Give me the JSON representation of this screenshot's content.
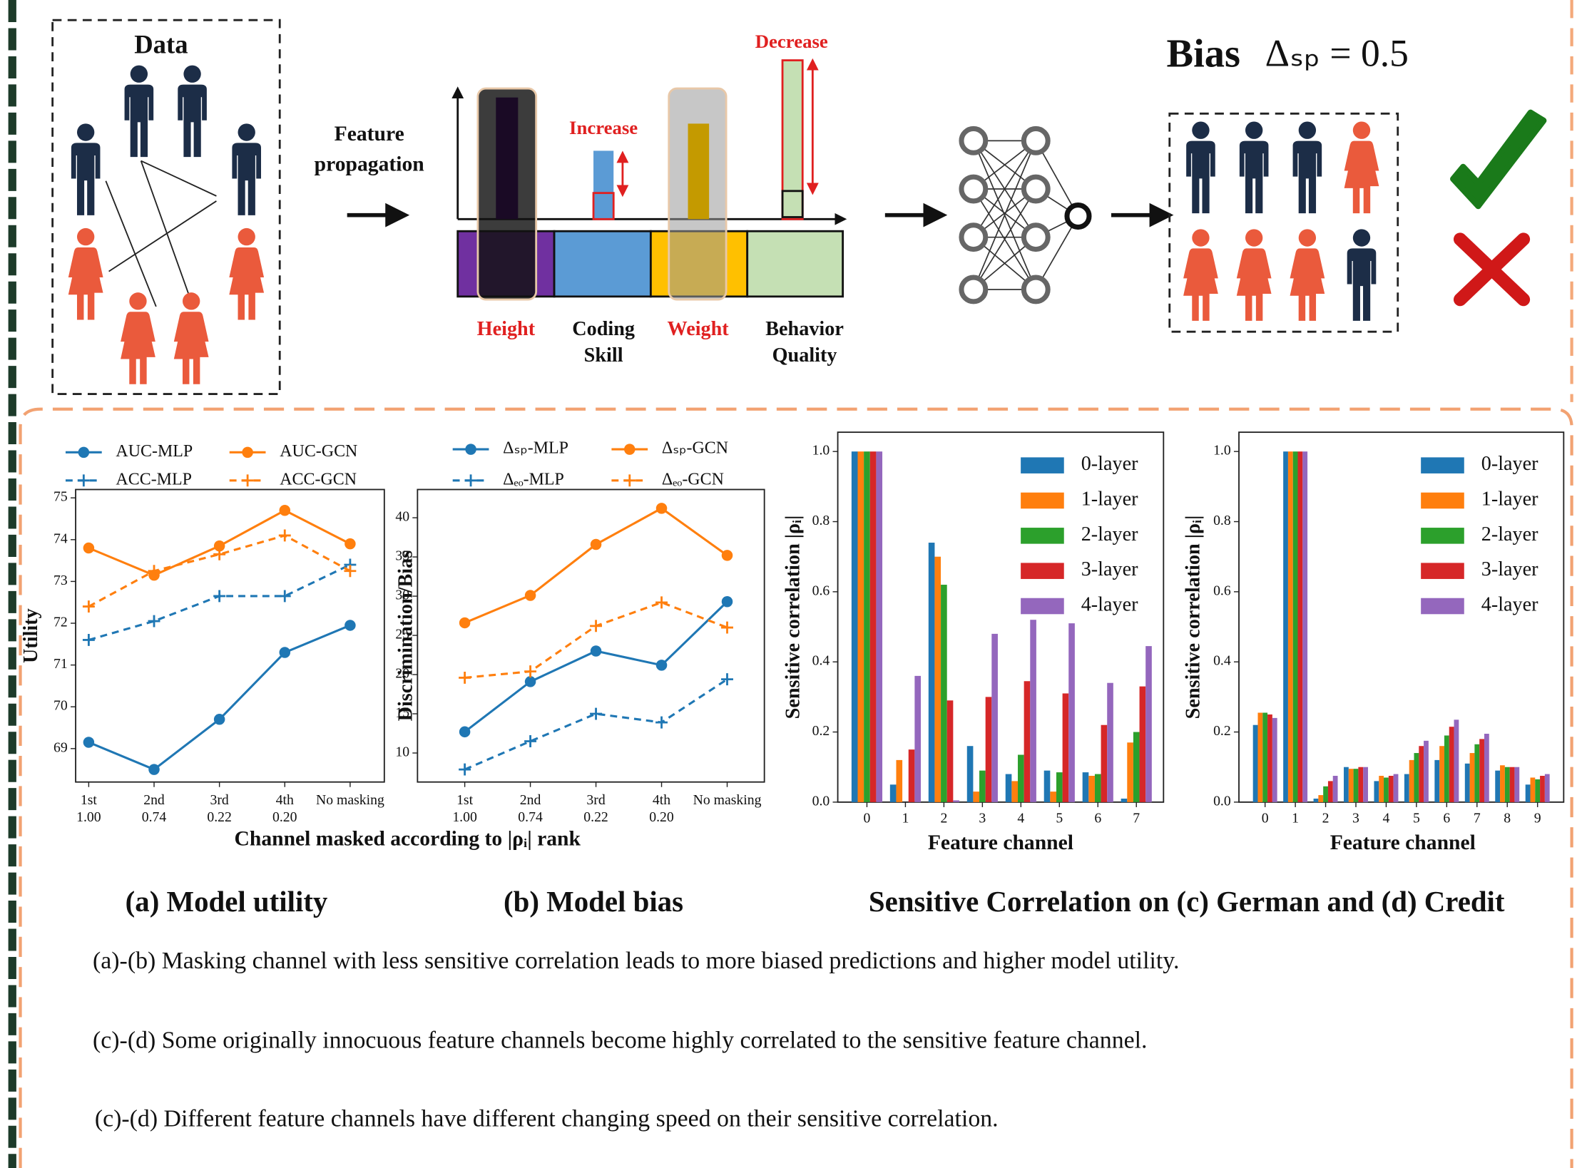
{
  "diagram": {
    "data_label": "Data",
    "propagation_label": [
      "Feature",
      "propagation"
    ],
    "increase": "Increase",
    "decrease": "Decrease",
    "features": [
      {
        "name": [
          "Height"
        ],
        "color": "#e02020"
      },
      {
        "name": [
          "Coding",
          "Skill"
        ],
        "color": "#111111"
      },
      {
        "name": [
          "Weight"
        ],
        "color": "#e02020"
      },
      {
        "name": [
          "Behavior",
          "Quality"
        ],
        "color": "#111111"
      }
    ],
    "bias_label": "Bias",
    "bias_formula": "Δₛₚ = 0.5"
  },
  "chart_data": [
    {
      "type": "line",
      "title": "(a) Model utility",
      "categories": [
        "1st",
        "2nd",
        "3rd",
        "4th",
        "No masking"
      ],
      "category_sublabels": [
        "1.00",
        "0.74",
        "0.22",
        "0.20",
        null
      ],
      "xlabel": "Channel masked according to |ρᵢ| rank",
      "ylabel": "Utility",
      "ylim": [
        68.2,
        75.2
      ],
      "yticks": [
        69,
        70,
        71,
        72,
        73,
        74,
        75
      ],
      "series": [
        {
          "name": "AUC-MLP",
          "color": "#1f77b4",
          "marker": "circle",
          "dashed": false,
          "values": [
            69.15,
            68.5,
            69.7,
            71.3,
            71.95
          ]
        },
        {
          "name": "ACC-MLP",
          "color": "#1f77b4",
          "marker": "plus",
          "dashed": true,
          "values": [
            71.6,
            72.05,
            72.65,
            72.65,
            73.4
          ]
        },
        {
          "name": "AUC-GCN",
          "color": "#ff7f0e",
          "marker": "circle",
          "dashed": false,
          "values": [
            73.8,
            73.15,
            73.85,
            74.7,
            73.9
          ]
        },
        {
          "name": "ACC-GCN",
          "color": "#ff7f0e",
          "marker": "plus",
          "dashed": true,
          "values": [
            72.4,
            73.25,
            73.65,
            74.1,
            73.25
          ]
        }
      ]
    },
    {
      "type": "line",
      "title": "(b) Model bias",
      "categories": [
        "1st",
        "2nd",
        "3rd",
        "4th",
        "No masking"
      ],
      "category_sublabels": [
        "1.00",
        "0.74",
        "0.22",
        "0.20",
        null
      ],
      "ylabel": "Discrimination/Bias",
      "ylim": [
        6.3,
        43.6
      ],
      "yticks": [
        10,
        15,
        20,
        25,
        30,
        35,
        40
      ],
      "series": [
        {
          "name": "Δₛₚ-MLP",
          "color": "#1f77b4",
          "marker": "circle",
          "dashed": false,
          "values": [
            12.7,
            19.1,
            23.0,
            21.2,
            29.3
          ]
        },
        {
          "name": "Δₑₒ-MLP",
          "color": "#1f77b4",
          "marker": "plus",
          "dashed": true,
          "values": [
            7.9,
            11.5,
            15.0,
            13.9,
            19.4
          ]
        },
        {
          "name": "Δₛₚ-GCN",
          "color": "#ff7f0e",
          "marker": "circle",
          "dashed": false,
          "values": [
            26.6,
            30.1,
            36.6,
            41.2,
            35.2
          ]
        },
        {
          "name": "Δₑₒ-GCN",
          "color": "#ff7f0e",
          "marker": "plus",
          "dashed": true,
          "values": [
            19.6,
            20.4,
            26.2,
            29.2,
            26.0
          ]
        }
      ]
    },
    {
      "type": "bar",
      "legend": "upper right",
      "categories": [
        "0",
        "1",
        "2",
        "3",
        "4",
        "5",
        "6",
        "7"
      ],
      "xlabel": "Feature channel",
      "ylabel": "Sensitive correlation |ρᵢ|",
      "ylim": [
        0,
        1.055
      ],
      "yticks": [
        {
          "value": 0,
          "label": "0.0"
        },
        0.2,
        0.4,
        0.6,
        0.8,
        {
          "value": 1,
          "label": "1.0"
        }
      ],
      "series": [
        {
          "name": "0-layer",
          "color": "#1f77b4",
          "values": [
            1.0,
            0.05,
            0.74,
            0.16,
            0.08,
            0.09,
            0.085,
            0.01
          ]
        },
        {
          "name": "1-layer",
          "color": "#ff7f0e",
          "values": [
            1.0,
            0.12,
            0.7,
            0.03,
            0.06,
            0.03,
            0.075,
            0.17
          ]
        },
        {
          "name": "2-layer",
          "color": "#2ca02c",
          "values": [
            1.0,
            0.0,
            0.62,
            0.09,
            0.135,
            0.085,
            0.08,
            0.2
          ]
        },
        {
          "name": "3-layer",
          "color": "#d62728",
          "values": [
            1.0,
            0.15,
            0.29,
            0.3,
            0.345,
            0.31,
            0.22,
            0.33
          ]
        },
        {
          "name": "4-layer",
          "color": "#9467bd",
          "values": [
            1.0,
            0.36,
            0.005,
            0.48,
            0.52,
            0.51,
            0.34,
            0.445
          ]
        }
      ]
    },
    {
      "type": "bar",
      "legend": "upper right",
      "categories": [
        "0",
        "1",
        "2",
        "3",
        "4",
        "5",
        "6",
        "7",
        "8",
        "9"
      ],
      "xlabel": "Feature channel",
      "ylabel": "Sensitive correlation |ρᵢ|",
      "ylim": [
        0,
        1.055
      ],
      "yticks": [
        {
          "value": 0,
          "label": "0.0"
        },
        0.2,
        0.4,
        0.6,
        0.8,
        {
          "value": 1,
          "label": "1.0"
        }
      ],
      "series": [
        {
          "name": "0-layer",
          "color": "#1f77b4",
          "values": [
            0.22,
            1.0,
            0.01,
            0.1,
            0.06,
            0.08,
            0.12,
            0.11,
            0.09,
            0.05
          ]
        },
        {
          "name": "1-layer",
          "color": "#ff7f0e",
          "values": [
            0.255,
            1.0,
            0.02,
            0.095,
            0.075,
            0.12,
            0.16,
            0.14,
            0.105,
            0.07
          ]
        },
        {
          "name": "2-layer",
          "color": "#2ca02c",
          "values": [
            0.255,
            1.0,
            0.045,
            0.095,
            0.07,
            0.14,
            0.19,
            0.165,
            0.1,
            0.065
          ]
        },
        {
          "name": "3-layer",
          "color": "#d62728",
          "values": [
            0.25,
            1.0,
            0.06,
            0.1,
            0.075,
            0.16,
            0.215,
            0.18,
            0.1,
            0.075
          ]
        },
        {
          "name": "4-layer",
          "color": "#9467bd",
          "values": [
            0.24,
            1.0,
            0.075,
            0.1,
            0.08,
            0.175,
            0.235,
            0.195,
            0.1,
            0.08
          ]
        }
      ]
    }
  ],
  "subcaption": "Sensitive Correlation on (c) German and (d) Credit",
  "notes": [
    "(a)-(b) Masking channel with less sensitive correlation leads to more biased predictions and higher model utility.",
    "(c)-(d) Some originally innocuous feature channels become highly correlated to the sensitive feature channel.",
    "(c)-(d) Different feature channels have different changing speed on their sensitive correlation."
  ]
}
